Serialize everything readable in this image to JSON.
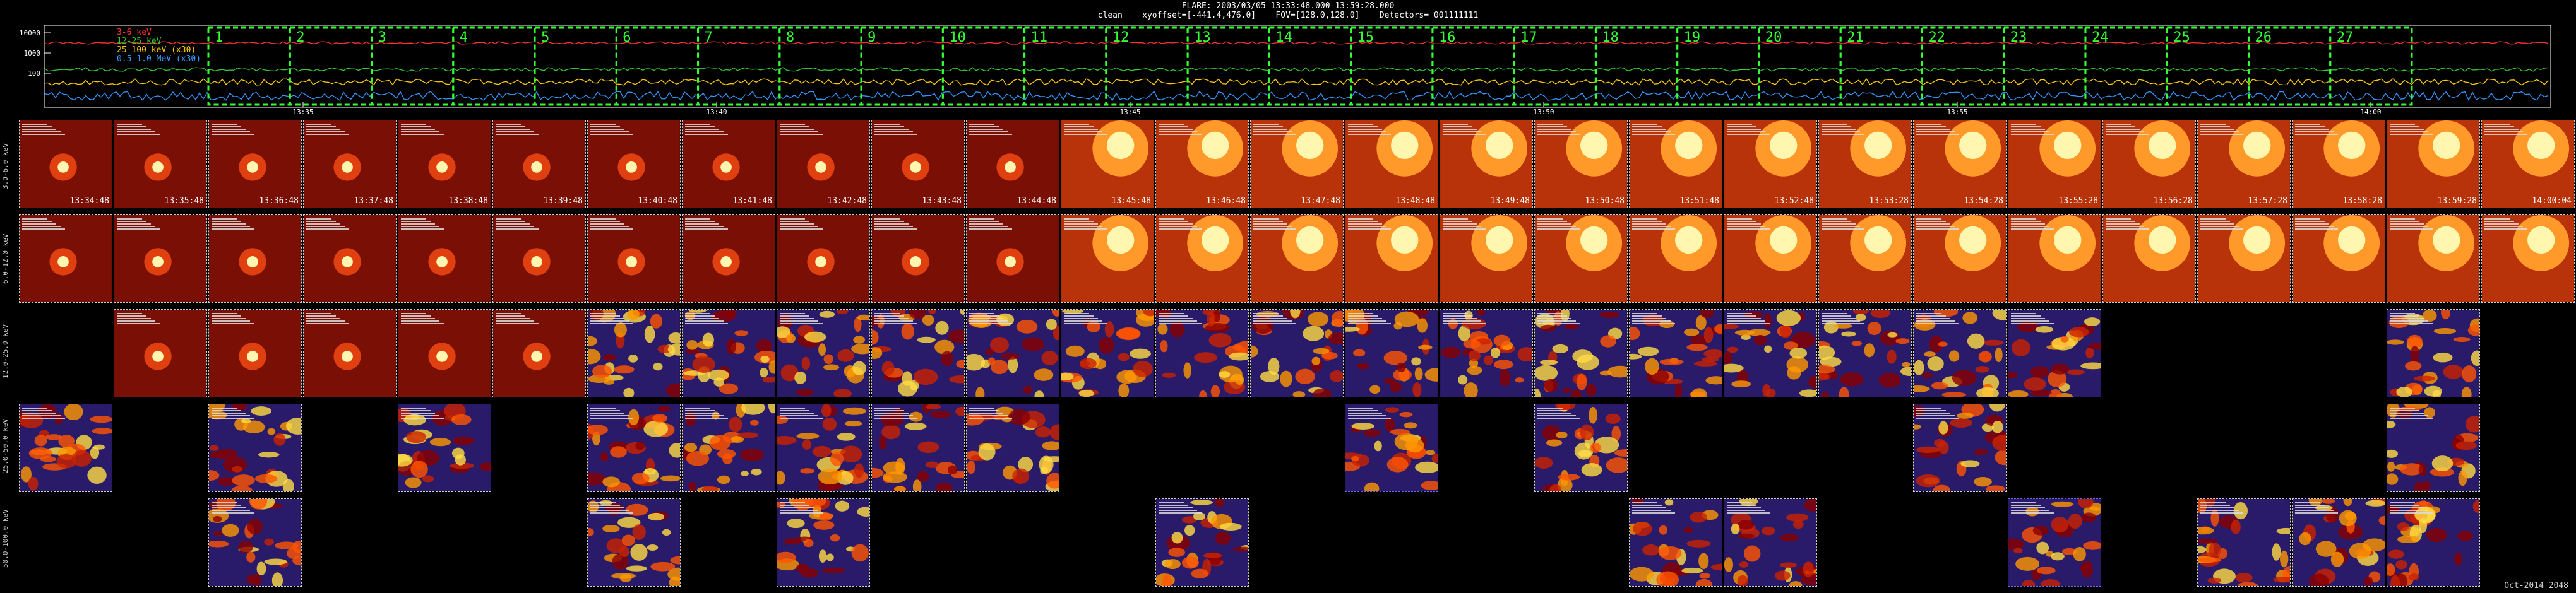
{
  "title": "FLARE: 2003/03/05 13:33:48.000-13:59:28.000",
  "subtitle": "clean    xyoffset=[-441.4,476.0]    FOV=[128.0,128.0]    Detectors= 001111111",
  "lightcurve": {
    "yticks": [
      "10000",
      "1000",
      "100"
    ],
    "legend": [
      {
        "label": "3-6 keV",
        "color": "#ff3333"
      },
      {
        "label": "12-25 keV",
        "color": "#33cc33"
      },
      {
        "label": "25-100 keV (x30)",
        "color": "#ffcc00"
      },
      {
        "label": "0.5-1.0 MeV (x30)",
        "color": "#3399ff"
      }
    ],
    "xticks": [
      "13:35",
      "13:40",
      "13:45",
      "13:50",
      "13:55",
      "14:00"
    ],
    "intervals": [
      "1",
      "2",
      "3",
      "4",
      "5",
      "6",
      "7",
      "8",
      "9",
      "10",
      "11",
      "12",
      "13",
      "14",
      "15",
      "16",
      "17",
      "18",
      "19",
      "20",
      "21",
      "22",
      "23",
      "24",
      "25",
      "26",
      "27"
    ],
    "colors": {
      "interval": "#33ff33",
      "axis": "#ffffff"
    }
  },
  "rows": [
    {
      "label": "3.0-6.0 keV"
    },
    {
      "label": "6.0-12.0 keV"
    },
    {
      "label": "12.0-25.0 keV"
    },
    {
      "label": "25.0-50.0 keV"
    },
    {
      "label": "50.0-100.0 keV"
    }
  ],
  "times": [
    "13:34:48",
    "13:35:48",
    "13:36:48",
    "13:37:48",
    "13:38:48",
    "13:39:48",
    "13:40:48",
    "13:41:48",
    "13:42:48",
    "13:43:48",
    "13:44:48",
    "13:45:48",
    "13:46:48",
    "13:47:48",
    "13:48:48",
    "13:49:48",
    "13:50:48",
    "13:51:48",
    "13:52:48",
    "13:53:28",
    "13:54:28",
    "13:55:28",
    "13:56:28",
    "13:57:28",
    "13:58:28",
    "13:59:28",
    "14:00:04"
  ],
  "footer": "Oct-2014 2048"
}
